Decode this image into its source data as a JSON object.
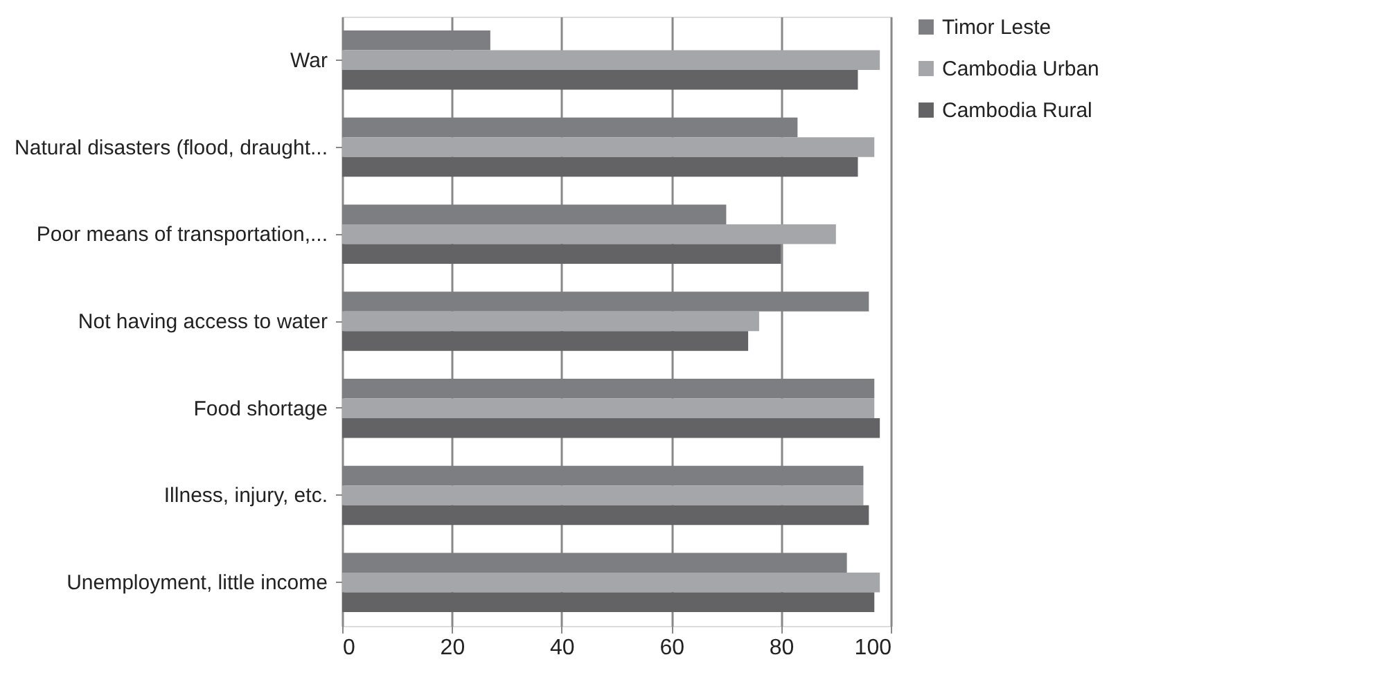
{
  "chart_data": {
    "type": "bar",
    "orientation": "horizontal",
    "categories": [
      "War",
      "Natural disasters (flood, draught...",
      "Poor means of transportation,...",
      "Not having access to water",
      "Food shortage",
      "Illness, injury, etc.",
      "Unemployment, little income"
    ],
    "series": [
      {
        "name": "Timor Leste",
        "color": "#7d7e82",
        "values": [
          27,
          83,
          70,
          96,
          97,
          95,
          92
        ]
      },
      {
        "name": "Cambodia Urban",
        "color": "#a5a6a9",
        "values": [
          98,
          97,
          90,
          76,
          97,
          95,
          98
        ]
      },
      {
        "name": "Cambodia Rural",
        "color": "#636366",
        "values": [
          94,
          94,
          80,
          74,
          98,
          96,
          97
        ]
      }
    ],
    "xlim": [
      0,
      100
    ],
    "xticks": [
      0,
      20,
      40,
      60,
      80,
      100
    ],
    "grid": "x",
    "legend": "right"
  }
}
